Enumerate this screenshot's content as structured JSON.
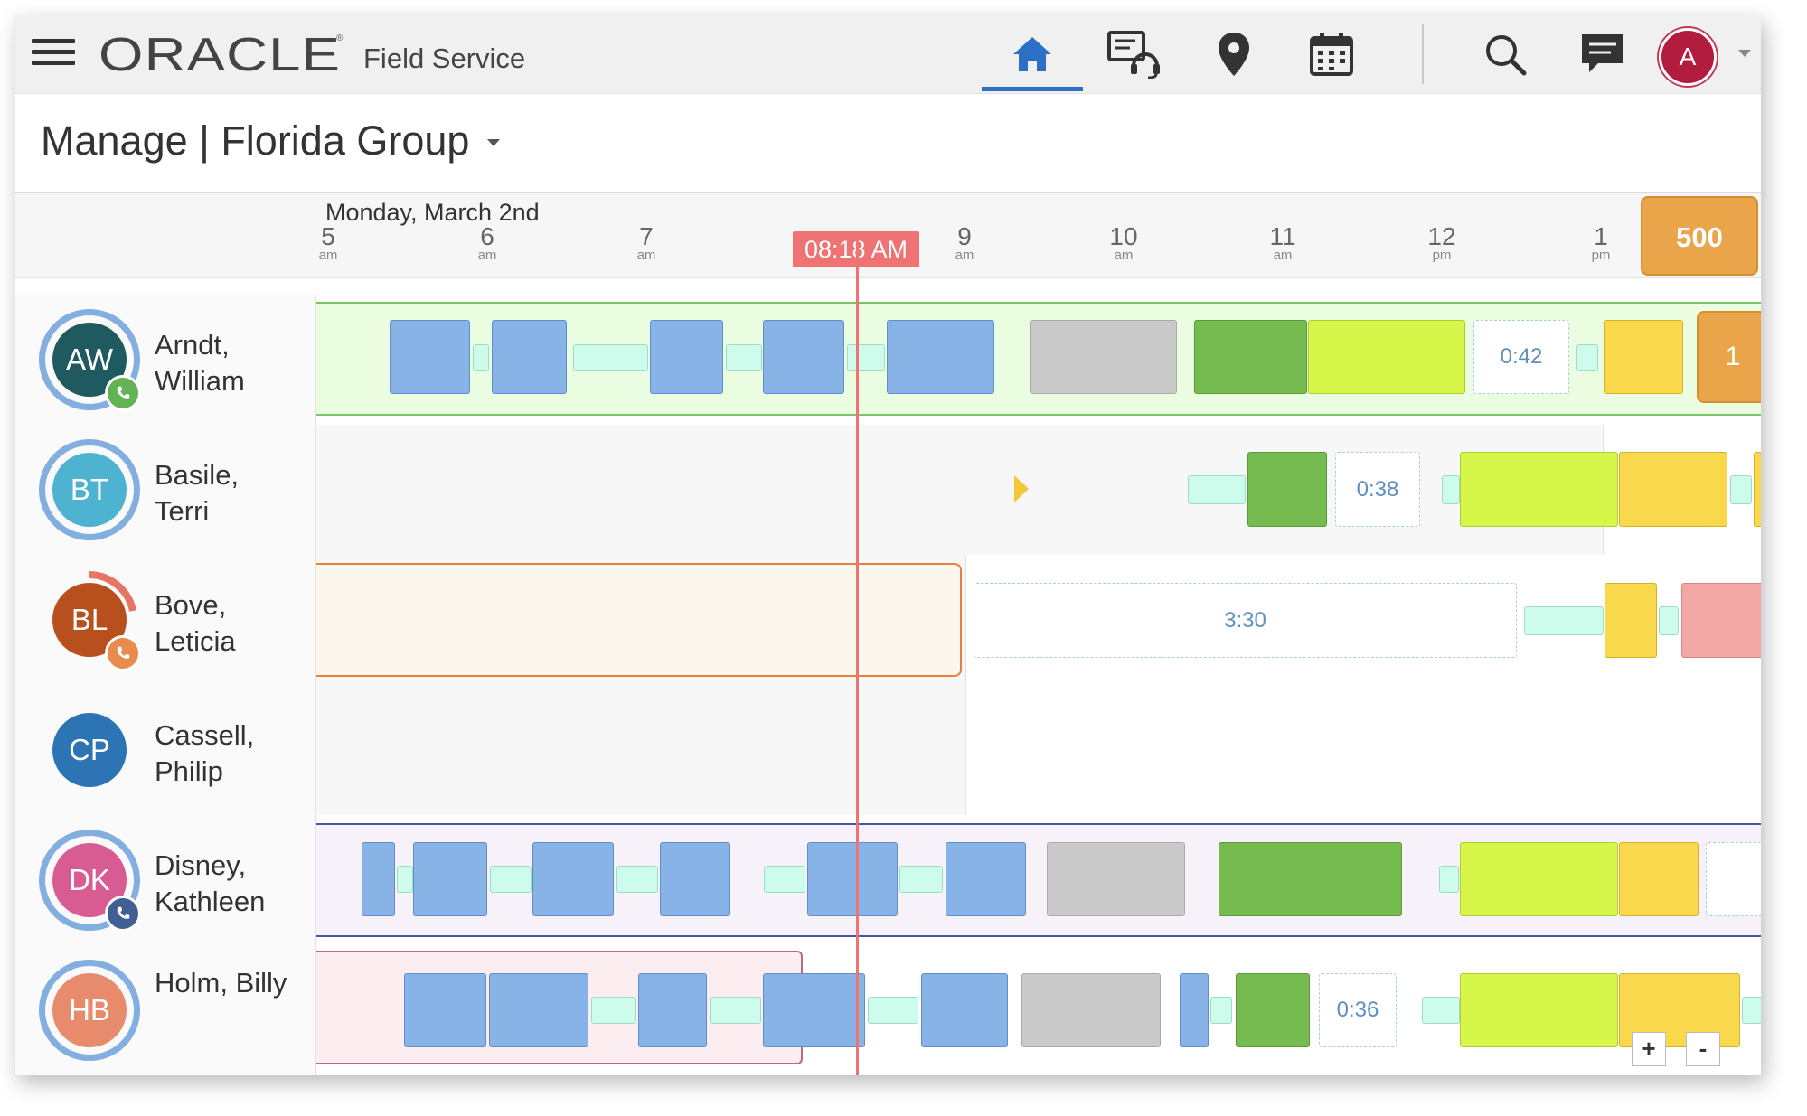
{
  "app": {
    "brand": "ORACLE",
    "registered": "®",
    "name": "Field Service"
  },
  "nav": {
    "items": [
      {
        "icon": "home-icon",
        "active": true
      },
      {
        "icon": "dispatch-console-icon"
      },
      {
        "icon": "map-pin-icon"
      },
      {
        "icon": "calendar-icon"
      }
    ],
    "search_icon": "search-icon",
    "messages_icon": "chat-icon",
    "user_initial": "A"
  },
  "page": {
    "title": "Manage | Florida Group"
  },
  "timeline": {
    "date": "Monday, March 2nd",
    "ticks": [
      {
        "h": "5",
        "ap": "am"
      },
      {
        "h": "6",
        "ap": "am"
      },
      {
        "h": "7",
        "ap": "am"
      },
      {
        "h": "9",
        "ap": "am"
      },
      {
        "h": "10",
        "ap": "am"
      },
      {
        "h": "11",
        "ap": "am"
      },
      {
        "h": "12",
        "ap": "pm"
      },
      {
        "h": "1",
        "ap": "pm"
      }
    ],
    "now_label": "08:18 AM",
    "unscheduled_count": "500"
  },
  "resources": [
    {
      "initials": "AW",
      "first_line": "Arndt,",
      "second_line": "William",
      "badge_count": "1"
    },
    {
      "initials": "BT",
      "first_line": "Basile,",
      "second_line": "Terri"
    },
    {
      "initials": "BL",
      "first_line": "Bove,",
      "second_line": "Leticia"
    },
    {
      "initials": "CP",
      "first_line": "Cassell,",
      "second_line": "Philip"
    },
    {
      "initials": "DK",
      "first_line": "Disney,",
      "second_line": "Kathleen"
    },
    {
      "initials": "HB",
      "first_line": "Holm, Billy",
      "second_line": ""
    }
  ],
  "gaps": {
    "aw": "0:42",
    "bt": "0:38",
    "bl": "3:30",
    "hb": "0:36"
  },
  "zoom": {
    "in": "+",
    "out": "-"
  },
  "colors": {
    "accent": "#2d6ec6",
    "now": "#ef7373",
    "scheduled": "#87b3e6",
    "travel": "#cdfcec",
    "completed": "#76bb4f",
    "started": "#d6f64a",
    "pending": "#f9d84b",
    "canceled": "#cacaca",
    "overdue": "#f3a7a4",
    "badge": "#eaa44a"
  }
}
